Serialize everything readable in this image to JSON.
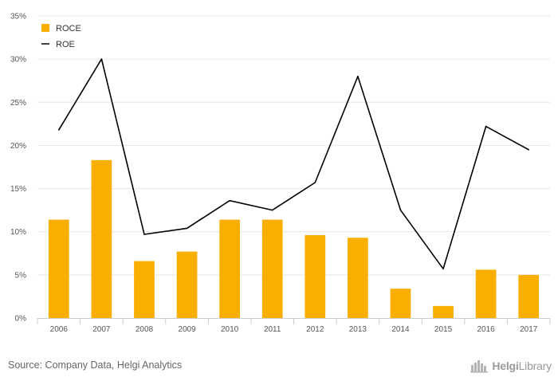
{
  "chart_data": {
    "type": "bar",
    "categories": [
      "2006",
      "2007",
      "2008",
      "2009",
      "2010",
      "2011",
      "2012",
      "2013",
      "2014",
      "2015",
      "2016",
      "2017"
    ],
    "series": [
      {
        "name": "ROCE",
        "type": "bar",
        "color": "#F9AE00",
        "values": [
          11.4,
          18.3,
          6.6,
          7.7,
          11.4,
          11.4,
          9.6,
          9.3,
          3.4,
          1.4,
          5.6,
          5.0
        ]
      },
      {
        "name": "ROE",
        "type": "line",
        "color": "#000000",
        "values": [
          21.8,
          30.0,
          9.7,
          10.4,
          13.6,
          12.5,
          15.7,
          28.0,
          12.5,
          5.7,
          22.2,
          19.5
        ]
      }
    ],
    "y_ticks": [
      "0%",
      "5%",
      "10%",
      "15%",
      "20%",
      "25%",
      "30%",
      "35%"
    ],
    "ylim": [
      0,
      35
    ],
    "grid": true,
    "legend_position": "top-left"
  },
  "source": "Source: Company Data, Helgi Analytics",
  "brand": {
    "prefix": "Helgi",
    "suffix": "Library",
    "icon": "helgi-logo-icon"
  }
}
